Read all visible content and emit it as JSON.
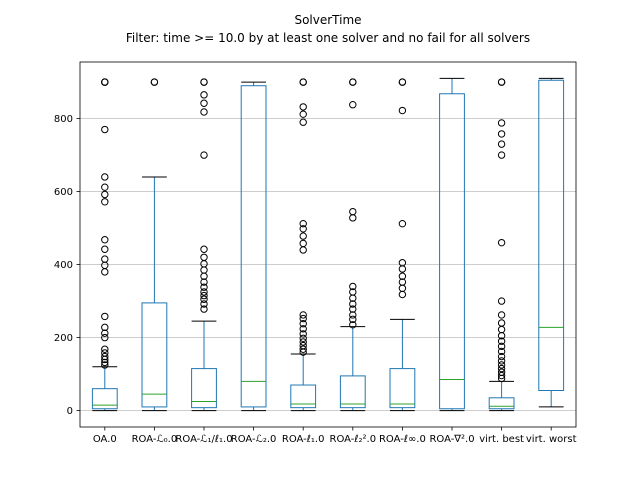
{
  "figure": {
    "title": "SolverTime",
    "subtitle": "Filter: time >= 10.0 by at least one solver and no fail for all solvers"
  },
  "chart_data": {
    "type": "boxplot",
    "title": "SolverTime",
    "subtitle": "Filter: time >= 10.0 by at least one solver and no fail for all solvers",
    "ylim": [
      -45,
      955
    ],
    "yticks": [
      0,
      200,
      400,
      600,
      800
    ],
    "grid": "horizontal",
    "legend": "none",
    "colors": {
      "box": "#1f77b4",
      "whisker": "#1f77b4",
      "median": "#2ca02c",
      "cap": "#000000",
      "flier": "#000000",
      "grid": "#c6c6c6",
      "frame": "#000000",
      "background": "#ffffff"
    },
    "categories": [
      "OA.0",
      "ROA-ℒ₀.0",
      "ROA-ℒ₁/ℓ₁.0",
      "ROA-ℒ₂.0",
      "ROA-ℓ₁.0",
      "ROA-ℓ₂².0",
      "ROA-ℓ∞.0",
      "ROA-∇².0",
      "virt. best",
      "virt. worst"
    ],
    "series": [
      {
        "name": "OA.0",
        "whislo": 0,
        "q1": 5,
        "med": 15,
        "q3": 60,
        "whishi": 120,
        "fliers": [
          125,
          132,
          140,
          148,
          158,
          168,
          200,
          212,
          228,
          258,
          380,
          398,
          415,
          442,
          468,
          572,
          592,
          612,
          640,
          770,
          900,
          900,
          900
        ]
      },
      {
        "name": "ROA-ℒ₀.0",
        "whislo": 0,
        "q1": 10,
        "med": 45,
        "q3": 295,
        "whishi": 640,
        "fliers": [
          900,
          900
        ]
      },
      {
        "name": "ROA-ℒ₁/ℓ₁.0",
        "whislo": 0,
        "q1": 8,
        "med": 25,
        "q3": 115,
        "whishi": 245,
        "fliers": [
          278,
          292,
          305,
          315,
          325,
          338,
          352,
          368,
          385,
          402,
          420,
          442,
          700,
          818,
          842,
          865,
          900,
          900
        ]
      },
      {
        "name": "ROA-ℒ₂.0",
        "whislo": 0,
        "q1": 10,
        "med": 80,
        "q3": 890,
        "whishi": 900,
        "fliers": []
      },
      {
        "name": "ROA-ℓ₁.0",
        "whislo": 0,
        "q1": 8,
        "med": 18,
        "q3": 70,
        "whishi": 155,
        "fliers": [
          160,
          168,
          178,
          188,
          198,
          210,
          224,
          238,
          252,
          262,
          440,
          458,
          478,
          498,
          512,
          790,
          812,
          832,
          900,
          900
        ]
      },
      {
        "name": "ROA-ℓ₂².0",
        "whislo": 0,
        "q1": 8,
        "med": 18,
        "q3": 95,
        "whishi": 230,
        "fliers": [
          235,
          250,
          262,
          278,
          292,
          308,
          325,
          340,
          528,
          545,
          838,
          900,
          900
        ]
      },
      {
        "name": "ROA-ℓ∞.0",
        "whislo": 0,
        "q1": 8,
        "med": 18,
        "q3": 115,
        "whishi": 250,
        "fliers": [
          318,
          335,
          352,
          368,
          388,
          405,
          512,
          822,
          900,
          900
        ]
      },
      {
        "name": "ROA-∇².0",
        "whislo": 0,
        "q1": 5,
        "med": 85,
        "q3": 868,
        "whishi": 910,
        "fliers": []
      },
      {
        "name": "virt. best",
        "whislo": 0,
        "q1": 5,
        "med": 12,
        "q3": 35,
        "whishi": 80,
        "fliers": [
          88,
          96,
          105,
          115,
          125,
          136,
          148,
          162,
          176,
          190,
          205,
          222,
          240,
          262,
          300,
          460,
          700,
          730,
          758,
          788,
          900,
          900
        ]
      },
      {
        "name": "virt. worst",
        "whislo": 10,
        "q1": 55,
        "med": 228,
        "q3": 905,
        "whishi": 910,
        "fliers": []
      }
    ]
  }
}
